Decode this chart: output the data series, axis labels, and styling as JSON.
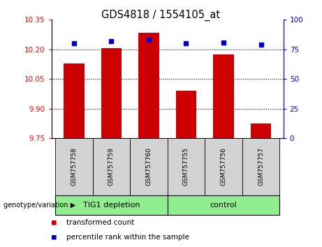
{
  "title": "GDS4818 / 1554105_at",
  "samples": [
    "GSM757758",
    "GSM757759",
    "GSM757760",
    "GSM757755",
    "GSM757756",
    "GSM757757"
  ],
  "bar_values": [
    10.13,
    10.205,
    10.285,
    9.99,
    10.175,
    9.825
  ],
  "dot_values": [
    80,
    82,
    83,
    80,
    81,
    79
  ],
  "bar_color": "#cc0000",
  "dot_color": "#0000cc",
  "ylim_left": [
    9.75,
    10.35
  ],
  "ylim_right": [
    0,
    100
  ],
  "yticks_left": [
    9.75,
    9.9,
    10.05,
    10.2,
    10.35
  ],
  "yticks_right": [
    0,
    25,
    50,
    75,
    100
  ],
  "sample_box_color": "#d3d3d3",
  "group_row_color": "#90EE90",
  "legend_red_label": "transformed count",
  "legend_blue_label": "percentile rank within the sample",
  "genotype_label": "genotype/variation"
}
